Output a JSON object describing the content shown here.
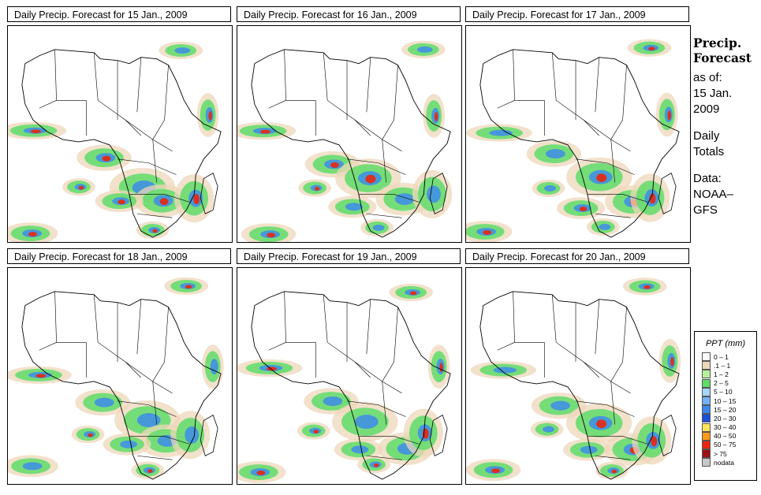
{
  "panels": [
    {
      "title": "Daily Precip. Forecast for  15 Jan., 2009"
    },
    {
      "title": "Daily Precip. Forecast for  16 Jan., 2009"
    },
    {
      "title": "Daily Precip. Forecast for  17 Jan., 2009"
    },
    {
      "title": "Daily Precip. Forecast for  18 Jan., 2009"
    },
    {
      "title": "Daily Precip. Forecast for  19 Jan., 2009"
    },
    {
      "title": "Daily Precip. Forecast for  20 Jan., 2009"
    }
  ],
  "side": {
    "title_line1": "Precip.",
    "title_line2": "Forecast",
    "asof_line1": "as of:",
    "asof_line2": "15 Jan.",
    "asof_line3": "2009",
    "totals_line1": "Daily",
    "totals_line2": "Totals",
    "data_line1": "Data:",
    "data_line2": "NOAA–",
    "data_line3": "GFS"
  },
  "legend": {
    "title": "PPT (mm)",
    "items": [
      {
        "label": "0 – 1",
        "color": "#ffffff"
      },
      {
        "label": ".1 – 1",
        "color": "#eed7b9"
      },
      {
        "label": "1 – 2",
        "color": "#b6f09c"
      },
      {
        "label": "2 – 5",
        "color": "#5fdc6a"
      },
      {
        "label": "5 – 10",
        "color": "#a9d3ff"
      },
      {
        "label": "10 – 15",
        "color": "#73b3f6"
      },
      {
        "label": "15 – 20",
        "color": "#3b87f0"
      },
      {
        "label": "20 – 30",
        "color": "#1650d6"
      },
      {
        "label": "30 – 40",
        "color": "#ffe35a"
      },
      {
        "label": "40 – 50",
        "color": "#ff9a18"
      },
      {
        "label": "50 – 75",
        "color": "#e8260e"
      },
      {
        "label": "> 75",
        "color": "#9e0f12"
      },
      {
        "label": "nodata",
        "color": "#c8c8c8"
      }
    ]
  }
}
